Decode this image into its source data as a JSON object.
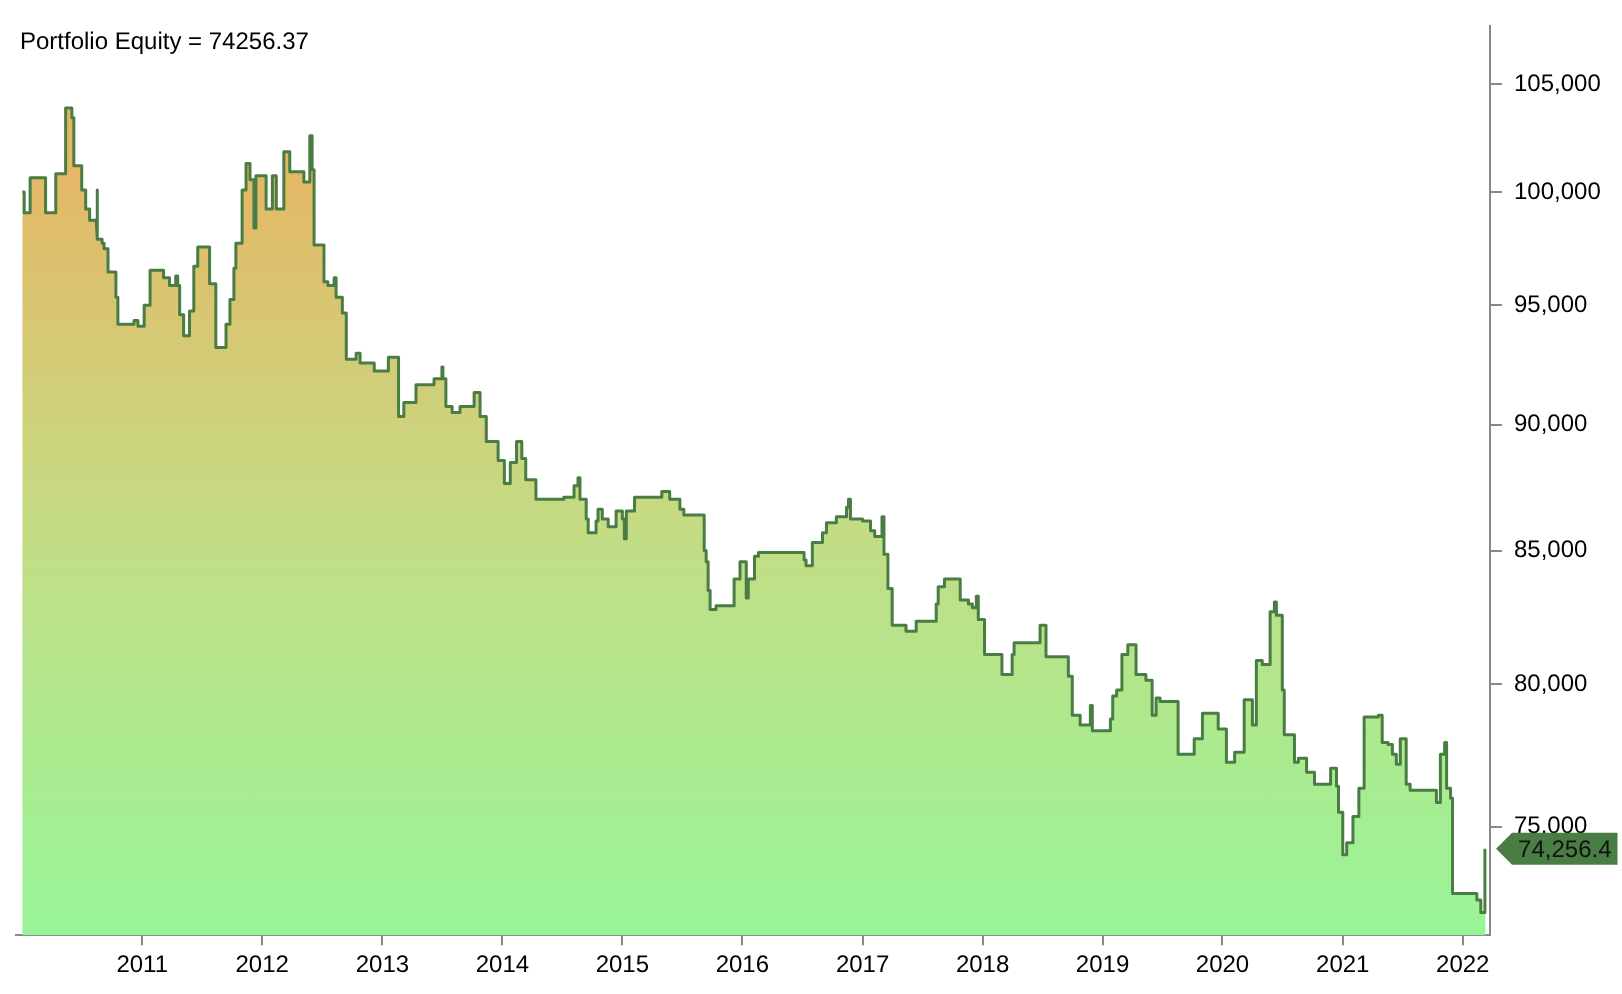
{
  "chart_data": {
    "type": "area",
    "title": "Portfolio Equity = 74256.37",
    "log": "y",
    "x": [
      "2010-01-01",
      "2010-01-07",
      "2010-01-07",
      "2010-01-25",
      "2010-01-25",
      "2010-03-13",
      "2010-03-13",
      "2010-04-13",
      "2010-04-13",
      "2010-05-13",
      "2010-05-13",
      "2010-06-01",
      "2010-06-01",
      "2010-06-07",
      "2010-06-07",
      "2010-07-01",
      "2010-07-01",
      "2010-07-13",
      "2010-07-13",
      "2010-07-25",
      "2010-07-25",
      "2010-08-14",
      "2010-08-14",
      "2010-08-19",
      "2010-08-19",
      "2010-09-01",
      "2010-09-01",
      "2010-09-07",
      "2010-09-07",
      "2010-09-19",
      "2010-09-19",
      "2010-10-13",
      "2010-10-13",
      "2010-10-19",
      "2010-10-19",
      "2010-12-07",
      "2010-12-07",
      "2010-12-19",
      "2010-12-19",
      "2011-01-07",
      "2011-01-07",
      "2011-01-25",
      "2011-01-25",
      "2011-03-07",
      "2011-03-07",
      "2011-03-25",
      "2011-03-25",
      "2011-04-13",
      "2011-04-13",
      "2011-04-19",
      "2011-04-19",
      "2011-04-25",
      "2011-04-25",
      "2011-05-07",
      "2011-05-07",
      "2011-05-25",
      "2011-05-25",
      "2011-06-07",
      "2011-06-07",
      "2011-06-19",
      "2011-06-19",
      "2011-07-25",
      "2011-07-25",
      "2011-08-13",
      "2011-08-13",
      "2011-09-13",
      "2011-09-13",
      "2011-09-25",
      "2011-09-25",
      "2011-10-07",
      "2011-10-07",
      "2011-10-13",
      "2011-10-13",
      "2011-11-01",
      "2011-11-01",
      "2011-11-13",
      "2011-11-13",
      "2011-11-25",
      "2011-11-25",
      "2011-12-07",
      "2011-12-07",
      "2011-12-13",
      "2011-12-13",
      "2012-01-13",
      "2012-01-13",
      "2012-02-01",
      "2012-02-01",
      "2012-02-13",
      "2012-02-13",
      "2012-03-07",
      "2012-03-07",
      "2012-03-25",
      "2012-03-25",
      "2012-05-07",
      "2012-05-07",
      "2012-05-25",
      "2012-05-25",
      "2012-06-01",
      "2012-06-01",
      "2012-06-07",
      "2012-06-07",
      "2012-07-07",
      "2012-07-07",
      "2012-07-19",
      "2012-07-19",
      "2012-08-07",
      "2012-08-07",
      "2012-08-13",
      "2012-08-13",
      "2012-09-01",
      "2012-09-01",
      "2012-09-13",
      "2012-09-13",
      "2012-10-13",
      "2012-10-13",
      "2012-10-25",
      "2012-10-25",
      "2012-12-07",
      "2012-12-07",
      "2013-01-19",
      "2013-01-19",
      "2013-02-19",
      "2013-02-19",
      "2013-03-07",
      "2013-03-07",
      "2013-04-13",
      "2013-04-13",
      "2013-06-07",
      "2013-06-07",
      "2013-07-01",
      "2013-07-01",
      "2013-07-04",
      "2013-07-04",
      "2013-07-13",
      "2013-07-13",
      "2013-08-01",
      "2013-08-01",
      "2013-08-25",
      "2013-08-25",
      "2013-10-07",
      "2013-10-07",
      "2013-10-25",
      "2013-10-25",
      "2013-11-13",
      "2013-11-13",
      "2013-12-19",
      "2013-12-19",
      "2014-01-07",
      "2014-01-07",
      "2014-01-25",
      "2014-01-25",
      "2014-02-13",
      "2014-02-13",
      "2014-03-01",
      "2014-03-01",
      "2014-03-13",
      "2014-03-13",
      "2014-04-13",
      "2014-04-13",
      "2014-07-07",
      "2014-07-07",
      "2014-08-07",
      "2014-08-07",
      "2014-08-19",
      "2014-08-19",
      "2014-08-25",
      "2014-08-25",
      "2014-09-13",
      "2014-09-13",
      "2014-09-19",
      "2014-09-19",
      "2014-10-13",
      "2014-10-13",
      "2014-10-19",
      "2014-10-19",
      "2014-11-01",
      "2014-11-01",
      "2014-11-19",
      "2014-11-19",
      "2014-12-13",
      "2014-12-13",
      "2015-01-01",
      "2015-01-01",
      "2015-01-07",
      "2015-01-07",
      "2015-01-13",
      "2015-01-13",
      "2015-02-07",
      "2015-02-07",
      "2015-05-01",
      "2015-05-01",
      "2015-05-25",
      "2015-05-25",
      "2015-06-25",
      "2015-06-25",
      "2015-07-07",
      "2015-07-07",
      "2015-09-07",
      "2015-09-07",
      "2015-09-13",
      "2015-09-13",
      "2015-09-19",
      "2015-09-19",
      "2015-09-25",
      "2015-09-25",
      "2015-10-13",
      "2015-10-13",
      "2015-12-07",
      "2015-12-07",
      "2015-12-25",
      "2015-12-25",
      "2016-01-13",
      "2016-01-13",
      "2016-01-19",
      "2016-01-19",
      "2016-02-07",
      "2016-02-07",
      "2016-02-19",
      "2016-02-19",
      "2016-07-07",
      "2016-07-07",
      "2016-07-13",
      "2016-07-13",
      "2016-08-01",
      "2016-08-01",
      "2016-09-01",
      "2016-09-01",
      "2016-09-13",
      "2016-09-13",
      "2016-10-13",
      "2016-10-13",
      "2016-11-13",
      "2016-11-13",
      "2016-11-19",
      "2016-11-19",
      "2016-11-25",
      "2016-11-25",
      "2017-01-01",
      "2017-01-01",
      "2017-01-25",
      "2017-01-25",
      "2017-02-07",
      "2017-02-07",
      "2017-03-01",
      "2017-03-01",
      "2017-03-07",
      "2017-03-07",
      "2017-03-19",
      "2017-03-19",
      "2017-04-01",
      "2017-04-01",
      "2017-05-13",
      "2017-05-13",
      "2017-06-13",
      "2017-06-13",
      "2017-08-13",
      "2017-08-13",
      "2017-08-19",
      "2017-08-19",
      "2017-09-07",
      "2017-09-07",
      "2017-10-25",
      "2017-10-25",
      "2017-11-19",
      "2017-11-19",
      "2017-12-01",
      "2017-12-01",
      "2017-12-13",
      "2017-12-13",
      "2017-12-19",
      "2017-12-19",
      "2018-01-07",
      "2018-01-07",
      "2018-03-01",
      "2018-03-01",
      "2018-04-01",
      "2018-04-01",
      "2018-04-07",
      "2018-04-07",
      "2018-06-25",
      "2018-06-25",
      "2018-07-13",
      "2018-07-13",
      "2018-09-19",
      "2018-09-19",
      "2018-10-01",
      "2018-10-01",
      "2018-10-25",
      "2018-10-25",
      "2018-11-25",
      "2018-11-25",
      "2018-12-01",
      "2018-12-01",
      "2019-01-25",
      "2019-01-25",
      "2019-02-01",
      "2019-02-01",
      "2019-02-13",
      "2019-02-13",
      "2019-03-01",
      "2019-03-01",
      "2019-03-19",
      "2019-03-19",
      "2019-04-13",
      "2019-04-13",
      "2019-05-13",
      "2019-05-13",
      "2019-06-01",
      "2019-06-01",
      "2019-06-13",
      "2019-06-13",
      "2019-06-25",
      "2019-06-25",
      "2019-08-19",
      "2019-08-19",
      "2019-10-07",
      "2019-10-07",
      "2019-11-01",
      "2019-11-01",
      "2019-12-19",
      "2019-12-19",
      "2020-01-13",
      "2020-01-13",
      "2020-02-07",
      "2020-02-07",
      "2020-03-07",
      "2020-03-07",
      "2020-04-01",
      "2020-04-01",
      "2020-04-13",
      "2020-04-13",
      "2020-05-01",
      "2020-05-01",
      "2020-05-25",
      "2020-05-25",
      "2020-06-07",
      "2020-06-07",
      "2020-06-13",
      "2020-06-13",
      "2020-07-01",
      "2020-07-01",
      "2020-07-07",
      "2020-07-07",
      "2020-08-07",
      "2020-08-07",
      "2020-08-19",
      "2020-08-19",
      "2020-09-13",
      "2020-09-13",
      "2020-10-07",
      "2020-10-07",
      "2020-11-25",
      "2020-11-25",
      "2020-12-13",
      "2020-12-13",
      "2020-12-19",
      "2020-12-19",
      "2021-01-01",
      "2021-01-01",
      "2021-01-13",
      "2021-01-13",
      "2021-02-01",
      "2021-02-01",
      "2021-02-19",
      "2021-02-19",
      "2021-03-07",
      "2021-03-07",
      "2021-04-19",
      "2021-04-19",
      "2021-05-01",
      "2021-05-01",
      "2021-05-19",
      "2021-05-19",
      "2021-06-01",
      "2021-06-01",
      "2021-06-13",
      "2021-06-13",
      "2021-06-25",
      "2021-06-25",
      "2021-07-13",
      "2021-07-13",
      "2021-07-25",
      "2021-07-25",
      "2021-10-13",
      "2021-10-13",
      "2021-10-25",
      "2021-10-25",
      "2021-11-07",
      "2021-11-07",
      "2021-11-13",
      "2021-11-13",
      "2021-11-25",
      "2021-11-25",
      "2021-12-01",
      "2021-12-01",
      "2022-02-13",
      "2022-02-13",
      "2022-02-25",
      "2022-02-25",
      "2022-03-07",
      "2022-03-07",
      "2022-03-12"
    ],
    "series": [
      {
        "color": "#4a7d44",
        "values": [
          100000,
          100000,
          99070,
          99070,
          100650,
          100650,
          99070,
          99070,
          100830,
          100830,
          103890,
          103890,
          103430,
          103430,
          101200,
          101200,
          100090,
          100090,
          99240,
          99240,
          98730,
          98730,
          100090,
          100090,
          97880,
          97880,
          97710,
          97710,
          97460,
          97460,
          96440,
          96440,
          95340,
          95340,
          94180,
          94180,
          94340,
          94340,
          94100,
          94100,
          95000,
          95000,
          96520,
          96520,
          96190,
          96190,
          95850,
          95850,
          96270,
          96270,
          95850,
          95850,
          94590,
          94590,
          93690,
          93690,
          94750,
          94750,
          96690,
          96690,
          97540,
          97540,
          95930,
          95930,
          93200,
          93200,
          94180,
          94180,
          95250,
          95250,
          96610,
          96610,
          97710,
          97710,
          100090,
          100090,
          101300,
          101300,
          100560,
          100560,
          98390,
          98390,
          100740,
          100740,
          99240,
          99240,
          100740,
          100740,
          99240,
          99240,
          101850,
          101850,
          100930,
          100930,
          100460,
          100460,
          102590,
          102590,
          101020,
          101020,
          97630,
          97630,
          96020,
          96020,
          95850,
          95850,
          96190,
          96190,
          95340,
          95340,
          94670,
          94670,
          92700,
          92700,
          92950,
          92950,
          92540,
          92540,
          92210,
          92210,
          92790,
          92790,
          90330,
          90330,
          90900,
          90900,
          91640,
          91640,
          91890,
          91890,
          92380,
          92380,
          91890,
          91890,
          90740,
          90740,
          90490,
          90490,
          90740,
          90740,
          91310,
          91310,
          90330,
          90330,
          89310,
          89310,
          88540,
          88540,
          87620,
          87620,
          88460,
          88460,
          89310,
          89310,
          88620,
          88620,
          87770,
          87770,
          87000,
          87000,
          87080,
          87080,
          87540,
          87540,
          87850,
          87850,
          87000,
          87000,
          86230,
          86230,
          85690,
          85690,
          86150,
          86150,
          86610,
          86610,
          86230,
          86230,
          85920,
          85920,
          86540,
          86540,
          86230,
          86230,
          85460,
          85460,
          86540,
          86540,
          87080,
          87080,
          87310,
          87310,
          87000,
          87000,
          86610,
          86610,
          86380,
          86380,
          85000,
          85000,
          84570,
          84570,
          83480,
          83480,
          82760,
          82760,
          82900,
          82900,
          83910,
          83910,
          84570,
          84570,
          83190,
          83190,
          83910,
          83910,
          84780,
          84780,
          84930,
          84930,
          84640,
          84640,
          84420,
          84420,
          85310,
          85310,
          85690,
          85690,
          86080,
          86080,
          86310,
          86310,
          86690,
          86690,
          87000,
          87000,
          86230,
          86230,
          86150,
          86150,
          85770,
          85770,
          85540,
          85540,
          86310,
          86310,
          84860,
          84860,
          83550,
          83550,
          82170,
          82170,
          81950,
          81950,
          82320,
          82320,
          82970,
          82970,
          83620,
          83620,
          83910,
          83910,
          83120,
          83120,
          82970,
          82970,
          82830,
          82830,
          83260,
          83260,
          82390,
          82390,
          81090,
          81090,
          80360,
          80360,
          81090,
          81090,
          81520,
          81520,
          82170,
          82170,
          81010,
          81010,
          80290,
          80290,
          78890,
          78890,
          78540,
          78540,
          79240,
          79240,
          78330,
          78330,
          78750,
          78750,
          79580,
          79580,
          79790,
          79790,
          81090,
          81090,
          81450,
          81450,
          80360,
          80360,
          80150,
          80150,
          78890,
          78890,
          79510,
          79510,
          79380,
          79380,
          77500,
          77500,
          78050,
          78050,
          78960,
          78960,
          78400,
          78400,
          77220,
          77220,
          77570,
          77570,
          79440,
          79440,
          78540,
          78540,
          80870,
          80870,
          80720,
          80720,
          82680,
          82680,
          83040,
          83040,
          82540,
          82540,
          79790,
          79790,
          78190,
          78190,
          77220,
          77220,
          77360,
          77360,
          76870,
          76870,
          76460,
          76460,
          77010,
          77010,
          76390,
          76390,
          75490,
          75490,
          74050,
          74050,
          74460,
          74460,
          75350,
          75350,
          76320,
          76320,
          78820,
          78820,
          78890,
          78890,
          77920,
          77920,
          77850,
          77850,
          77500,
          77500,
          77150,
          77150,
          78050,
          78050,
          76460,
          76460,
          76250,
          76250,
          75830,
          75830,
          77500,
          77500,
          77920,
          77920,
          76320,
          76320,
          75970,
          75970,
          72760,
          72760,
          72550,
          72550,
          72140,
          72140,
          74256,
          74256
        ]
      }
    ],
    "xlim": [
      "2009-12-13",
      "2022-03-25"
    ],
    "xticks": [
      "2011",
      "2012",
      "2013",
      "2014",
      "2015",
      "2016",
      "2017",
      "2018",
      "2019",
      "2020",
      "2021",
      "2022"
    ],
    "ylim": [
      71400,
      107800
    ],
    "yticks": [
      {
        "value": 75000,
        "label": "75,000"
      },
      {
        "value": 80000,
        "label": "80,000"
      },
      {
        "value": 85000,
        "label": "85,000"
      },
      {
        "value": 90000,
        "label": "90,000"
      },
      {
        "value": 95000,
        "label": "95,000"
      },
      {
        "value": 100000,
        "label": "100,000"
      },
      {
        "value": 105000,
        "label": "105,000"
      }
    ],
    "annotations": [
      {
        "text": "74,256.4",
        "x": "2022-03-07",
        "y": 74256.4
      }
    ]
  }
}
